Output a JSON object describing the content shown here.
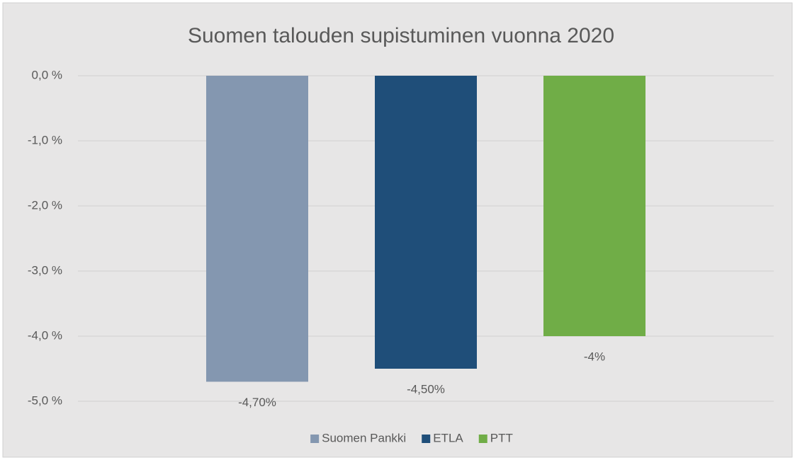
{
  "chart_data": {
    "type": "bar",
    "title": "Suomen talouden supistuminen vuonna 2020",
    "categories": [
      null
    ],
    "series": [
      {
        "name": "Suomen Pankki",
        "color": "#8497b0",
        "values": [
          -4.7
        ],
        "value_labels": [
          "-4,70%"
        ]
      },
      {
        "name": "ETLA",
        "color": "#1f4e79",
        "values": [
          -4.5
        ],
        "value_labels": [
          "-4,50%"
        ]
      },
      {
        "name": "PTT",
        "color": "#70ad47",
        "values": [
          -4
        ],
        "value_labels": [
          "-4%"
        ]
      }
    ],
    "ylim": [
      -5,
      0
    ],
    "yticks": [
      {
        "value": 0,
        "label": "0,0 %"
      },
      {
        "value": -1,
        "label": "-1,0 %"
      },
      {
        "value": -2,
        "label": "-2,0 %"
      },
      {
        "value": -3,
        "label": "-3,0 %"
      },
      {
        "value": -4,
        "label": "-4,0 %"
      },
      {
        "value": -5,
        "label": "-5,0 %"
      }
    ],
    "grid": true,
    "legend": "bottom"
  }
}
